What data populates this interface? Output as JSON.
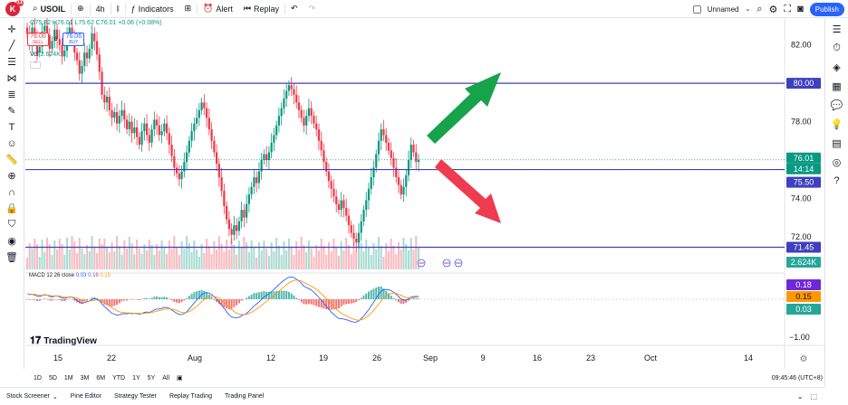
{
  "topbar": {
    "logo_letter": "K",
    "logo_badge": "11",
    "symbol": "USOIL",
    "interval": "4h",
    "indicators": "Indicators",
    "alert": "Alert",
    "replay": "Replay",
    "layout_name": "Unnamed",
    "publish": "Publish"
  },
  "legend": {
    "ohlc": "O75.82 H76.01 L75.62 C76.01 +0.06 (+0.08%)",
    "sell_price": "76.00",
    "sell_label": "SELL",
    "spread": "6",
    "buy_price": "76.06",
    "buy_label": "BUY",
    "vol_label": "Vol",
    "vol_value": "2.624K",
    "macd_label": "MACD 12 26 close",
    "macd_v1": "0.03",
    "macd_v2": "0.18",
    "macd_v3": "0.15"
  },
  "price_axis": {
    "ticks": [
      "82.00",
      "78.00",
      "74.00",
      "72.00"
    ],
    "macd_tick": "−1.00",
    "badges": {
      "level_high": "80.00",
      "last_price": "76.01",
      "countdown": "14:14",
      "level_mid": "75.50",
      "level_low": "71.45",
      "volume": "2.624K",
      "macd_a": "0.18",
      "macd_b": "0.15",
      "macd_c": "0.03"
    }
  },
  "time_axis": [
    "15",
    "22",
    "Aug",
    "12",
    "19",
    "26",
    "Sep",
    "9",
    "16",
    "23",
    "Oct",
    "14"
  ],
  "ranges": [
    "1D",
    "5D",
    "1M",
    "3M",
    "6M",
    "YTD",
    "1Y",
    "5Y",
    "All"
  ],
  "clock": "09:45:46 (UTC+8)",
  "bottom_tabs": [
    "Stock Screener",
    "Pine Editor",
    "Strategy Tester",
    "Replay Trading",
    "Trading Panel"
  ],
  "brand": "TradingView",
  "colors": {
    "up": "#089981",
    "down": "#f23645",
    "level_line": "#3f3fbf",
    "arrow_up": "#16a34a",
    "arrow_down": "#ef3b4f",
    "macd_line": "#2962ff",
    "signal_line": "#ff9800"
  },
  "chart_data": {
    "type": "candlestick",
    "interval": "4h",
    "y_range": [
      70.2,
      83.4
    ],
    "horizontal_levels": [
      80.0,
      75.5,
      71.45
    ],
    "last_price": 76.01,
    "closes": [
      82.6,
      82.1,
      82.9,
      82.4,
      81.6,
      81.9,
      82.7,
      83.0,
      82.5,
      81.8,
      82.2,
      82.8,
      82.3,
      82.0,
      81.4,
      81.7,
      82.5,
      82.9,
      82.4,
      81.6,
      81.2,
      80.5,
      80.9,
      81.6,
      81.3,
      81.8,
      82.6,
      82.2,
      81.5,
      80.6,
      79.4,
      79.0,
      79.3,
      78.6,
      78.2,
      78.5,
      77.9,
      78.3,
      78.6,
      78.1,
      77.6,
      78.0,
      77.4,
      77.7,
      77.2,
      76.8,
      77.5,
      77.9,
      77.3,
      76.9,
      77.6,
      78.1,
      77.8,
      77.3,
      77.5,
      77.9,
      77.4,
      76.8,
      76.2,
      75.6,
      75.3,
      75.0,
      75.4,
      75.9,
      76.4,
      77.0,
      77.5,
      77.9,
      78.2,
      78.6,
      79.0,
      78.7,
      78.2,
      77.6,
      77.0,
      76.4,
      75.8,
      75.1,
      74.4,
      73.6,
      72.9,
      72.4,
      72.1,
      72.6,
      72.3,
      72.8,
      73.4,
      73.0,
      73.7,
      74.2,
      74.6,
      75.1,
      74.8,
      75.4,
      76.0,
      76.3,
      76.0,
      76.4,
      76.9,
      77.3,
      77.8,
      78.3,
      78.7,
      79.2,
      79.6,
      79.9,
      79.7,
      79.4,
      79.0,
      78.6,
      78.2,
      77.8,
      78.3,
      78.7,
      78.3,
      77.9,
      77.6,
      77.0,
      76.5,
      75.9,
      75.4,
      74.9,
      74.5,
      74.1,
      73.7,
      73.4,
      73.9,
      73.5,
      73.1,
      72.6,
      72.2,
      71.9,
      71.7,
      72.2,
      72.8,
      73.4,
      73.9,
      74.5,
      75.1,
      75.6,
      76.3,
      77.0,
      77.6,
      77.3,
      76.9,
      76.5,
      76.1,
      75.6,
      75.1,
      74.7,
      74.2,
      74.6,
      75.2,
      76.0,
      76.8,
      76.4,
      75.9,
      76.01
    ],
    "macd": [
      0.35,
      0.3,
      0.32,
      0.28,
      0.2,
      0.18,
      0.24,
      0.3,
      0.27,
      0.18,
      0.15,
      0.2,
      0.22,
      0.16,
      0.08,
      0.05,
      0.1,
      0.16,
      0.14,
      0.04,
      -0.08,
      -0.2,
      -0.28,
      -0.22,
      -0.18,
      -0.12,
      -0.02,
      0.04,
      0.0,
      -0.12,
      -0.3,
      -0.48,
      -0.62,
      -0.78,
      -0.92,
      -0.98,
      -1.04,
      -1.02,
      -0.96,
      -0.94,
      -0.96,
      -0.92,
      -0.94,
      -0.92,
      -0.94,
      -0.98,
      -0.94,
      -0.86,
      -0.84,
      -0.86,
      -0.8,
      -0.7,
      -0.64,
      -0.64,
      -0.6,
      -0.54,
      -0.54,
      -0.6,
      -0.7,
      -0.82,
      -0.92,
      -1.0,
      -1.0,
      -0.94,
      -0.82,
      -0.64,
      -0.44,
      -0.24,
      -0.06,
      0.12,
      0.3,
      0.4,
      0.44,
      0.4,
      0.3,
      0.16,
      0.0,
      -0.18,
      -0.38,
      -0.6,
      -0.82,
      -1.02,
      -1.16,
      -1.2,
      -1.22,
      -1.18,
      -1.08,
      -1.02,
      -0.92,
      -0.78,
      -0.62,
      -0.44,
      -0.32,
      -0.18,
      -0.02,
      0.14,
      0.24,
      0.36,
      0.5,
      0.64,
      0.8,
      0.96,
      1.1,
      1.24,
      1.36,
      1.44,
      1.46,
      1.42,
      1.32,
      1.2,
      1.04,
      0.86,
      0.76,
      0.7,
      0.6,
      0.46,
      0.3,
      0.12,
      -0.06,
      -0.26,
      -0.46,
      -0.66,
      -0.84,
      -1.0,
      -1.14,
      -1.26,
      -1.28,
      -1.3,
      -1.34,
      -1.4,
      -1.46,
      -1.5,
      -1.5,
      -1.42,
      -1.28,
      -1.1,
      -0.9,
      -0.68,
      -0.44,
      -0.2,
      0.06,
      0.32,
      0.54,
      0.62,
      0.64,
      0.62,
      0.56,
      0.46,
      0.32,
      0.18,
      0.02,
      -0.06,
      -0.06,
      0.02,
      0.14,
      0.18,
      0.18,
      0.18
    ]
  }
}
